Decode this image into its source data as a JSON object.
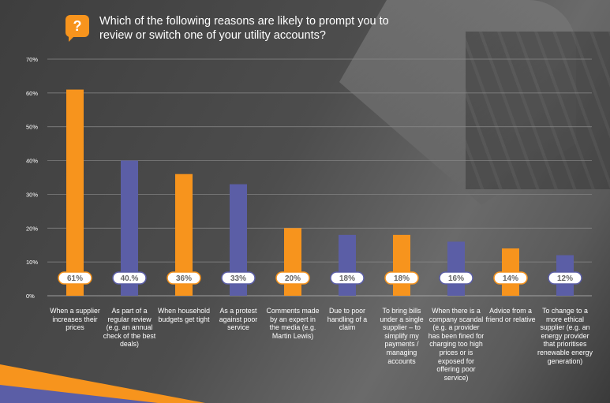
{
  "header": {
    "icon": "question-mark-icon",
    "icon_text": "?",
    "title": "Which of the following reasons are likely to prompt you to review or switch one of your utility accounts?"
  },
  "colors": {
    "orange": "#F7941D",
    "purple": "#5B5EA6"
  },
  "chart_data": {
    "type": "bar",
    "title": "Which of the following reasons are likely to prompt you to review or switch one of your utility accounts?",
    "ylim": [
      0,
      70
    ],
    "yticks": [
      "0%",
      "10%",
      "20%",
      "30%",
      "40%",
      "50%",
      "60%",
      "70%"
    ],
    "grid": true,
    "categories": [
      "When a supplier increases their prices",
      "As part of a regular review (e.g. an annual check of the best deals)",
      "When household budgets get tight",
      "As a protest against poor service",
      "Comments made by an expert in the media (e.g. Martin Lewis)",
      "Due to poor handling of a claim",
      "To bring bills under a single supplier – to simplify my payments / managing accounts",
      "When there is a company scandal (e.g. a provider has been fined for charging too high prices or is exposed for offering poor service)",
      "Advice from a friend or relative",
      "To change to a more ethical supplier (e.g. an energy provider that prioritises renewable energy generation)"
    ],
    "values": [
      61,
      40,
      36,
      33,
      20,
      18,
      18,
      16,
      14,
      12
    ],
    "data_labels": [
      "61%",
      "40.%",
      "36%",
      "33%",
      "20%",
      "18%",
      "18%",
      "16%",
      "14%",
      "12%"
    ],
    "bar_colors": [
      "#F7941D",
      "#5B5EA6",
      "#F7941D",
      "#5B5EA6",
      "#F7941D",
      "#5B5EA6",
      "#F7941D",
      "#5B5EA6",
      "#F7941D",
      "#5B5EA6"
    ]
  }
}
